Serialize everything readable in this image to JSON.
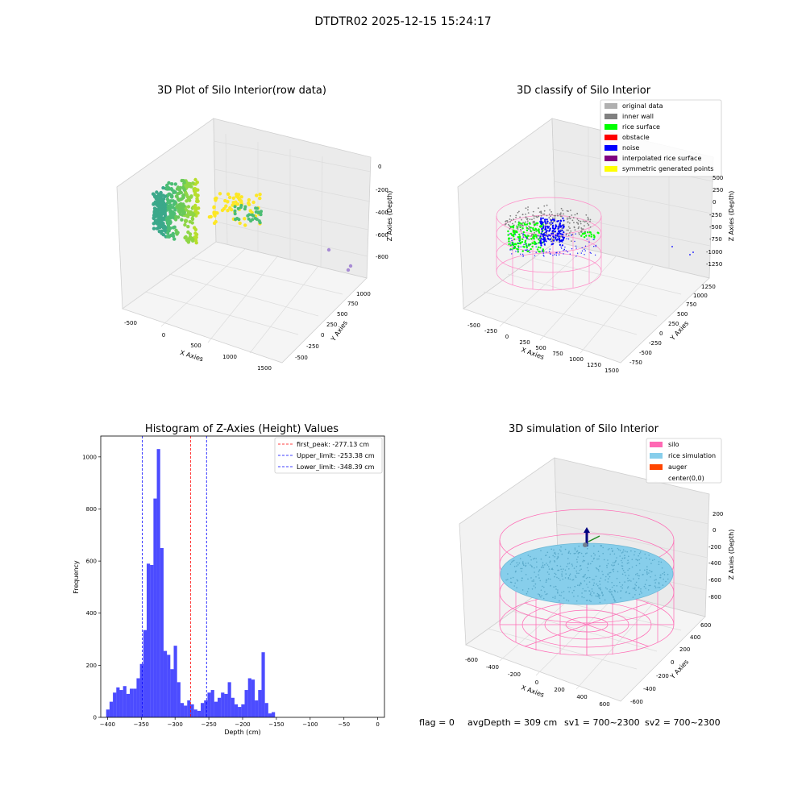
{
  "figure": {
    "suptitle": "DTDTR02 2025-12-15 15:24:17",
    "footer": {
      "flag": "flag = 0",
      "avg_depth": "avgDepth = 309 cm",
      "sv1": "sv1 = 700~2300",
      "sv2": "sv2 = 700~2300"
    }
  },
  "panels": {
    "raw": {
      "title": "3D Plot of Silo Interior(row data)",
      "xlabel": "X Axies",
      "ylabel": "Y Axies",
      "zlabel": "Z Axies (Depth)",
      "xticks": [
        "-500",
        "0",
        "500",
        "1000",
        "1500"
      ],
      "yticks": [
        "-500",
        "-250",
        "0",
        "250",
        "500",
        "750",
        "1000"
      ],
      "zticks": [
        "0",
        "-200",
        "-400",
        "-600",
        "-800"
      ]
    },
    "classify": {
      "title": "3D classify of Silo Interior",
      "xlabel": "X Axies",
      "ylabel": "Y Axies",
      "zlabel": "Z Axies (Depth)",
      "xticks": [
        "-500",
        "-250",
        "0",
        "250",
        "500",
        "750",
        "1000",
        "1250",
        "1500"
      ],
      "yticks": [
        "-750",
        "-500",
        "-250",
        "0",
        "250",
        "500",
        "750",
        "1000",
        "1250"
      ],
      "zticks": [
        "500",
        "250",
        "0",
        "-250",
        "-500",
        "-750",
        "-1000",
        "-1250"
      ],
      "legend": [
        {
          "label": "original data",
          "color": "#b0b0b0"
        },
        {
          "label": "inner wall",
          "color": "#808080"
        },
        {
          "label": "rice surface",
          "color": "#00ff00"
        },
        {
          "label": "obstacle",
          "color": "#ff0000"
        },
        {
          "label": "noise",
          "color": "#0000ff"
        },
        {
          "label": "interpolated rice surface",
          "color": "#800080"
        },
        {
          "label": "symmetric generated points",
          "color": "#ffff00"
        }
      ]
    },
    "simulation": {
      "title": "3D simulation of Silo Interior",
      "xlabel": "X Axies",
      "ylabel": "Y Axies",
      "zlabel": "Z Axies (Depth)",
      "xticks": [
        "-600",
        "-400",
        "-200",
        "0",
        "200",
        "400",
        "600"
      ],
      "yticks": [
        "-600",
        "-400",
        "-200",
        "0",
        "200",
        "400",
        "600"
      ],
      "zticks": [
        "200",
        "0",
        "-200",
        "-400",
        "-600",
        "-800"
      ],
      "legend": [
        {
          "label": "silo",
          "color": "#ff69b4"
        },
        {
          "label": "rice simulation",
          "color": "#87ceeb"
        },
        {
          "label": "auger",
          "color": "#ff4500"
        },
        {
          "label": "center(0,0)",
          "color": "#ffffff"
        }
      ]
    }
  },
  "chart_data": [
    {
      "type": "histogram",
      "title": "Histogram of Z-Axies (Height) Values",
      "xlabel": "Depth (cm)",
      "ylabel": "Frequency",
      "xlim": [
        -410,
        10
      ],
      "ylim": [
        0,
        1080
      ],
      "xticks": [
        -400,
        -350,
        -300,
        -250,
        -200,
        -150,
        -100,
        -50,
        0
      ],
      "yticks": [
        0,
        200,
        400,
        600,
        800,
        1000
      ],
      "bar_color": "#0000ff",
      "bin_width": 5,
      "bin_start": -402,
      "counts": [
        30,
        60,
        95,
        115,
        105,
        120,
        90,
        110,
        110,
        150,
        205,
        335,
        590,
        585,
        840,
        1030,
        650,
        255,
        240,
        185,
        275,
        135,
        55,
        45,
        65,
        50,
        30,
        25,
        55,
        65,
        95,
        105,
        60,
        75,
        95,
        90,
        135,
        75,
        50,
        40,
        50,
        105,
        150,
        145,
        65,
        105,
        250,
        55,
        15,
        20
      ],
      "vlines": [
        {
          "label": "first_peak: -277.13 cm",
          "x": -277.13,
          "color": "#ff0000"
        },
        {
          "label": "Upper_limit: -253.38 cm",
          "x": -253.38,
          "color": "#0000ff"
        },
        {
          "label": "Lower_limit: -348.39 cm",
          "x": -348.39,
          "color": "#0000ff"
        }
      ]
    }
  ]
}
